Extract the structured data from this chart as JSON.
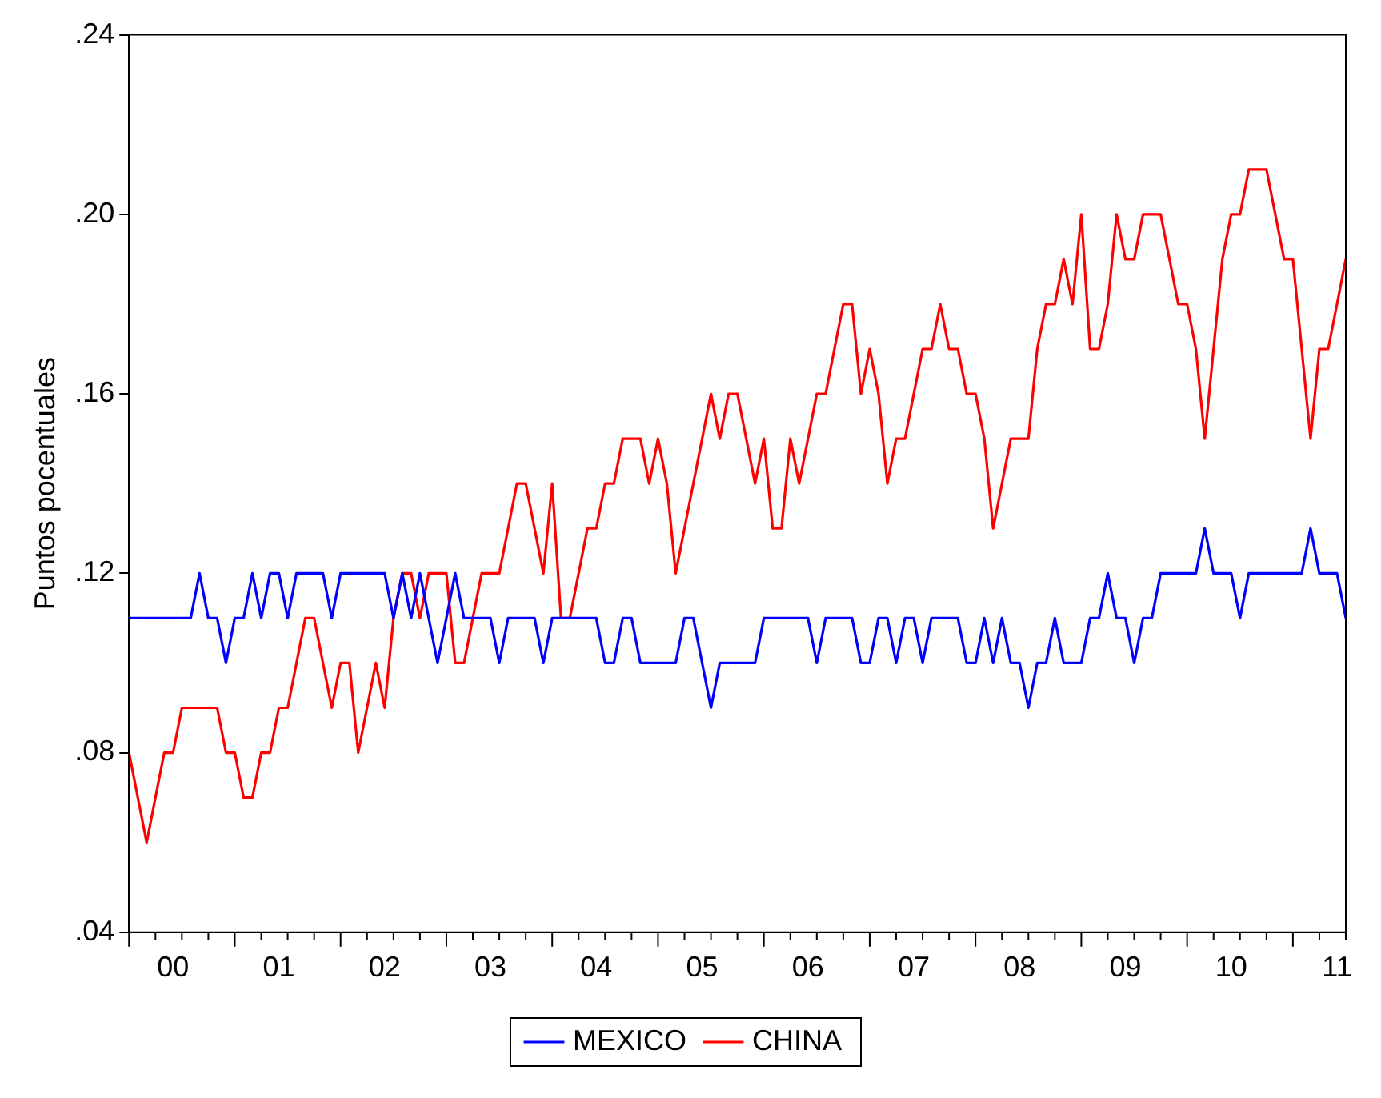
{
  "chart_data": {
    "type": "line",
    "ylabel": "Puntos pocentuales",
    "categories": [
      null,
      null,
      null,
      null,
      null,
      "00",
      null,
      null,
      null,
      null,
      null,
      null,
      null,
      null,
      null,
      null,
      null,
      "01",
      null,
      null,
      null,
      null,
      null,
      null,
      null,
      null,
      null,
      null,
      null,
      "02",
      null,
      null,
      null,
      null,
      null,
      null,
      null,
      null,
      null,
      null,
      null,
      "03",
      null,
      null,
      null,
      null,
      null,
      null,
      null,
      null,
      null,
      null,
      null,
      "04",
      null,
      null,
      null,
      null,
      null,
      null,
      null,
      null,
      null,
      null,
      null,
      "05",
      null,
      null,
      null,
      null,
      null,
      null,
      null,
      null,
      null,
      null,
      null,
      "06",
      null,
      null,
      null,
      null,
      null,
      null,
      null,
      null,
      null,
      null,
      null,
      "07",
      null,
      null,
      null,
      null,
      null,
      null,
      null,
      null,
      null,
      null,
      null,
      "08",
      null,
      null,
      null,
      null,
      null,
      null,
      null,
      null,
      null,
      null,
      null,
      "09",
      null,
      null,
      null,
      null,
      null,
      null,
      null,
      null,
      null,
      null,
      null,
      "10",
      null,
      null,
      null,
      null,
      null,
      null,
      null,
      null,
      null,
      null,
      null,
      "11",
      null
    ],
    "series": [
      {
        "name": "MEXICO",
        "color": "#0000ff",
        "values": [
          0.11,
          0.11,
          0.11,
          0.11,
          0.11,
          0.11,
          0.11,
          0.11,
          0.12,
          0.11,
          0.11,
          0.1,
          0.11,
          0.11,
          0.12,
          0.11,
          0.12,
          0.12,
          0.11,
          0.12,
          0.12,
          0.12,
          0.12,
          0.11,
          0.12,
          0.12,
          0.12,
          0.12,
          0.12,
          0.12,
          0.11,
          0.12,
          0.11,
          0.12,
          0.11,
          0.1,
          0.11,
          0.12,
          0.11,
          0.11,
          0.11,
          0.11,
          0.1,
          0.11,
          0.11,
          0.11,
          0.11,
          0.1,
          0.11,
          0.11,
          0.11,
          0.11,
          0.11,
          0.11,
          0.1,
          0.1,
          0.11,
          0.11,
          0.1,
          0.1,
          0.1,
          0.1,
          0.1,
          0.11,
          0.11,
          0.1,
          0.09,
          0.1,
          0.1,
          0.1,
          0.1,
          0.1,
          0.11,
          0.11,
          0.11,
          0.11,
          0.11,
          0.11,
          0.1,
          0.11,
          0.11,
          0.11,
          0.11,
          0.1,
          0.1,
          0.11,
          0.11,
          0.1,
          0.11,
          0.11,
          0.1,
          0.11,
          0.11,
          0.11,
          0.11,
          0.1,
          0.1,
          0.11,
          0.1,
          0.11,
          0.1,
          0.1,
          0.09,
          0.1,
          0.1,
          0.11,
          0.1,
          0.1,
          0.1,
          0.11,
          0.11,
          0.12,
          0.11,
          0.11,
          0.1,
          0.11,
          0.11,
          0.12,
          0.12,
          0.12,
          0.12,
          0.12,
          0.13,
          0.12,
          0.12,
          0.12,
          0.11,
          0.12,
          0.12,
          0.12,
          0.12,
          0.12,
          0.12,
          0.12,
          0.13,
          0.12,
          0.12,
          0.12,
          0.11
        ]
      },
      {
        "name": "CHINA",
        "color": "#ff0000",
        "values": [
          0.08,
          0.07,
          0.06,
          0.07,
          0.08,
          0.08,
          0.09,
          0.09,
          0.09,
          0.09,
          0.09,
          0.08,
          0.08,
          0.07,
          0.07,
          0.08,
          0.08,
          0.09,
          0.09,
          0.1,
          0.11,
          0.11,
          0.1,
          0.09,
          0.1,
          0.1,
          0.08,
          0.09,
          0.1,
          0.09,
          0.11,
          0.12,
          0.12,
          0.11,
          0.12,
          0.12,
          0.12,
          0.1,
          0.1,
          0.11,
          0.12,
          0.12,
          0.12,
          0.13,
          0.14,
          0.14,
          0.13,
          0.12,
          0.14,
          0.11,
          0.11,
          0.12,
          0.13,
          0.13,
          0.14,
          0.14,
          0.15,
          0.15,
          0.15,
          0.14,
          0.15,
          0.14,
          0.12,
          0.13,
          0.14,
          0.15,
          0.16,
          0.15,
          0.16,
          0.16,
          0.15,
          0.14,
          0.15,
          0.13,
          0.13,
          0.15,
          0.14,
          0.15,
          0.16,
          0.16,
          0.17,
          0.18,
          0.18,
          0.16,
          0.17,
          0.16,
          0.14,
          0.15,
          0.15,
          0.16,
          0.17,
          0.17,
          0.18,
          0.17,
          0.17,
          0.16,
          0.16,
          0.15,
          0.13,
          0.14,
          0.15,
          0.15,
          0.15,
          0.17,
          0.18,
          0.18,
          0.19,
          0.18,
          0.2,
          0.17,
          0.17,
          0.18,
          0.2,
          0.19,
          0.19,
          0.2,
          0.2,
          0.2,
          0.19,
          0.18,
          0.18,
          0.17,
          0.15,
          0.17,
          0.19,
          0.2,
          0.2,
          0.21,
          0.21,
          0.21,
          0.2,
          0.19,
          0.19,
          0.17,
          0.15,
          0.17,
          0.17,
          0.18,
          0.19
        ]
      }
    ],
    "ylim": [
      0.04,
      0.24
    ],
    "yticks": [
      {
        "value": 0.04,
        "label": ".04"
      },
      {
        "value": 0.08,
        "label": ".08"
      },
      {
        "value": 0.12,
        "label": ".12"
      },
      {
        "value": 0.16,
        "label": ".16"
      },
      {
        "value": 0.2,
        "label": ".20"
      },
      {
        "value": 0.24,
        "label": ".24"
      }
    ],
    "grid": false,
    "legend": "bottom",
    "marker": "none"
  }
}
